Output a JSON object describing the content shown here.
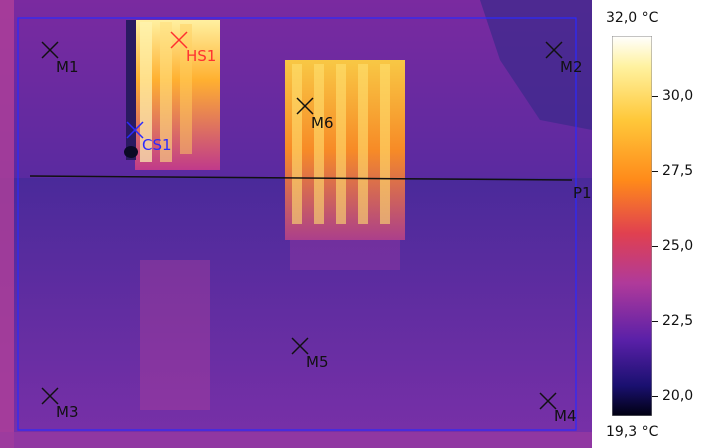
{
  "image": {
    "palette": "iron",
    "colors": {
      "background": "#6a2aa6",
      "hot": "#ffd24a",
      "warm": "#ff8c1a",
      "cool": "#3a1f8c",
      "cold": "#0a0a30",
      "frame": "#2a2aff",
      "line": "#111111"
    }
  },
  "markers": [
    {
      "id": "M1",
      "label": "M1",
      "color": "#111111"
    },
    {
      "id": "M2",
      "label": "M2",
      "color": "#111111"
    },
    {
      "id": "M3",
      "label": "M3",
      "color": "#111111"
    },
    {
      "id": "M4",
      "label": "M4",
      "color": "#111111"
    },
    {
      "id": "M5",
      "label": "M5",
      "color": "#111111"
    },
    {
      "id": "M6",
      "label": "M6",
      "color": "#111111"
    },
    {
      "id": "HS1",
      "label": "HS1",
      "color": "#ff3030"
    },
    {
      "id": "CS1",
      "label": "CS1",
      "color": "#2a2aff"
    }
  ],
  "profile_line": {
    "label": "P1"
  },
  "scale": {
    "max_label": "32,0 °C",
    "min_label": "19,3 °C",
    "ticks": [
      "30,0",
      "27,5",
      "25,0",
      "22,5",
      "20,0"
    ]
  }
}
